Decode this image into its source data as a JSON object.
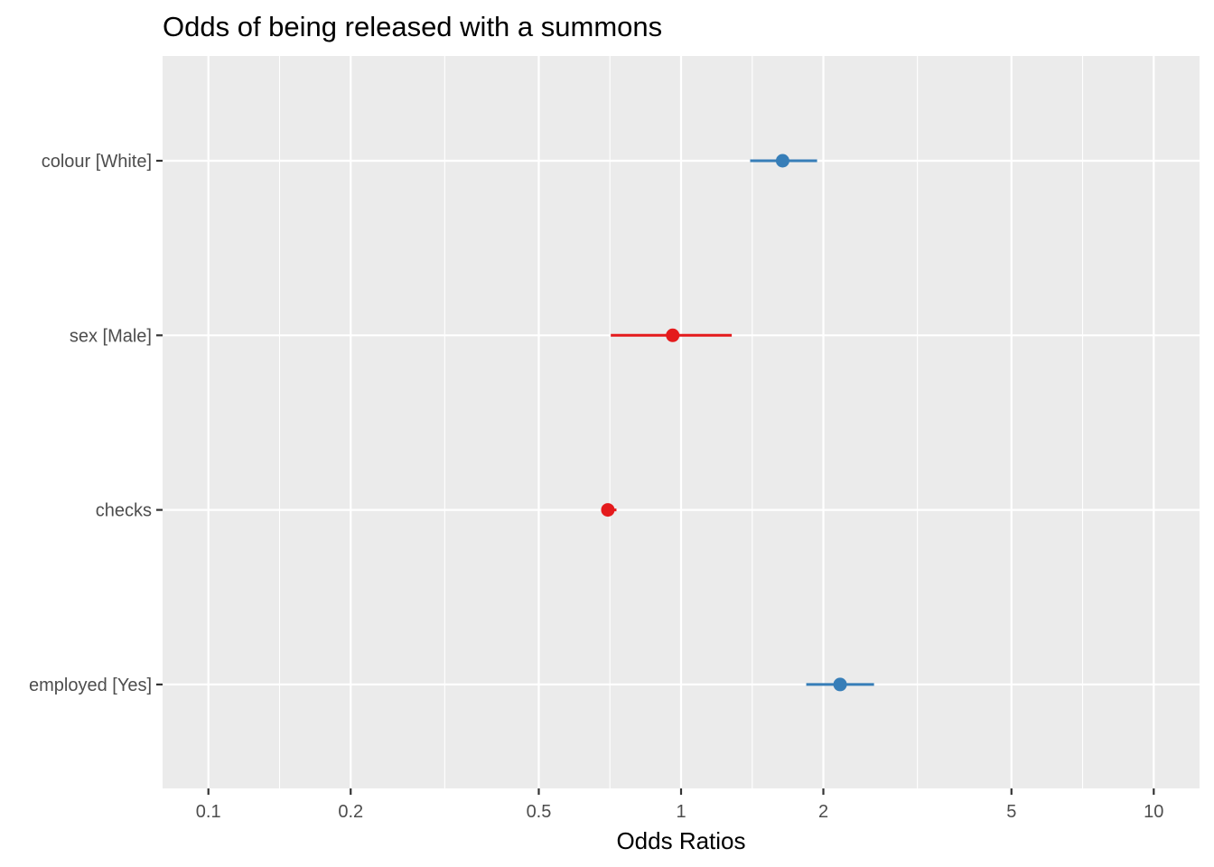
{
  "chart_data": {
    "type": "scatter",
    "title": "Odds of being released with a summons",
    "xlabel": "Odds Ratios",
    "ylabel": "",
    "x_scale": "log10",
    "xlim": [
      0.08,
      12.5
    ],
    "x_ticks": [
      0.1,
      0.2,
      0.5,
      1,
      2,
      5,
      10
    ],
    "x_tick_labels": [
      "0.1",
      "0.2",
      "0.5",
      "1",
      "2",
      "5",
      "10"
    ],
    "grid": true,
    "legend": "none",
    "background": "#ebebeb",
    "colors": {
      "positive": "#377eb8",
      "negative": "#e41a1c"
    },
    "categories": [
      "colour [White]",
      "sex [Male]",
      "checks",
      "employed [Yes]"
    ],
    "points": [
      {
        "term": "colour [White]",
        "estimate": 1.64,
        "conf_low": 1.4,
        "conf_high": 1.94,
        "direction": "positive"
      },
      {
        "term": "sex [Male]",
        "estimate": 0.96,
        "conf_low": 0.71,
        "conf_high": 1.28,
        "direction": "negative"
      },
      {
        "term": "checks",
        "estimate": 0.7,
        "conf_low": 0.68,
        "conf_high": 0.73,
        "direction": "negative"
      },
      {
        "term": "employed [Yes]",
        "estimate": 2.17,
        "conf_low": 1.84,
        "conf_high": 2.56,
        "direction": "positive"
      }
    ]
  }
}
